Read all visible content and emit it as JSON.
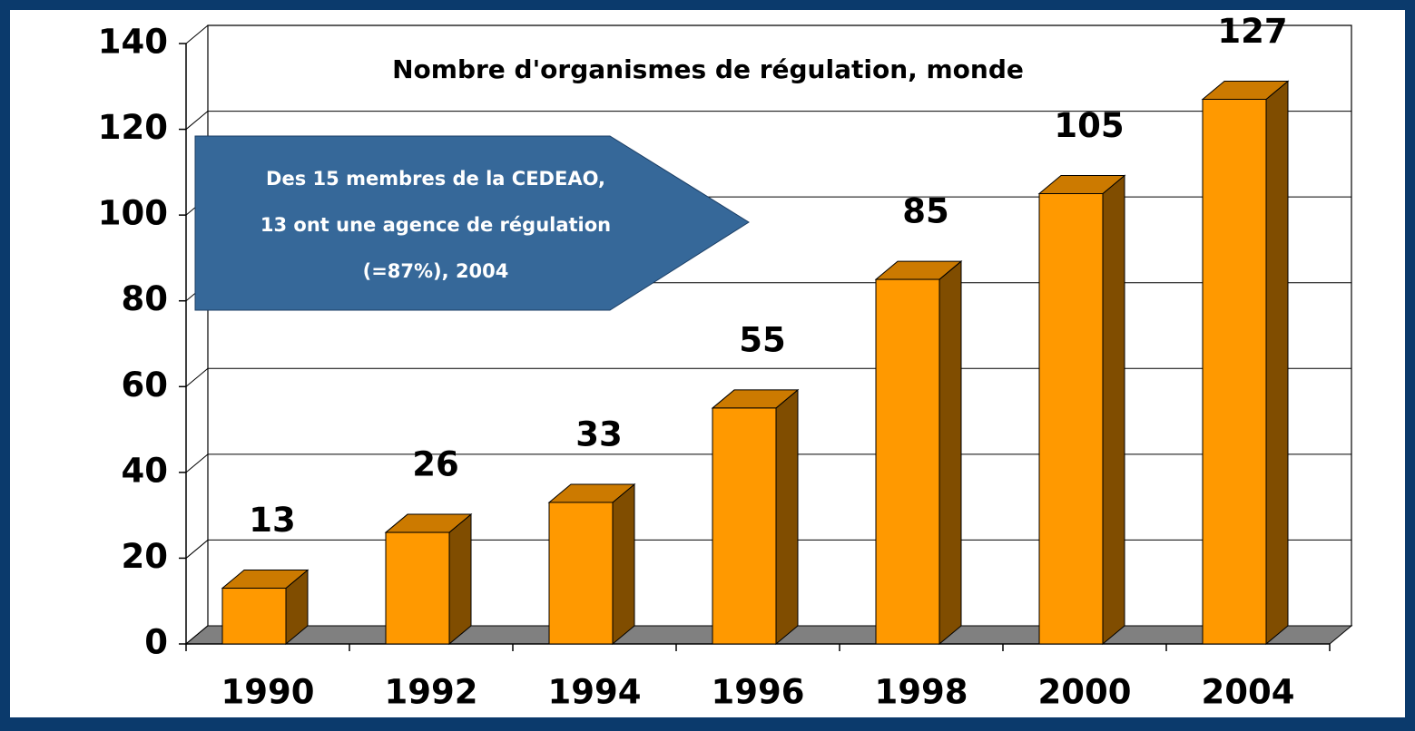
{
  "chart_data": {
    "type": "bar3d",
    "title": "Nombre d'organismes de régulation, monde",
    "annotation": [
      "Des 15 membres de la CEDEAO,",
      "13 ont une agence de régulation",
      "(=87%), 2004"
    ],
    "categories": [
      "1990",
      "1992",
      "1994",
      "1996",
      "1998",
      "2000",
      "2004"
    ],
    "values": [
      13,
      26,
      33,
      55,
      85,
      105,
      127
    ],
    "color": "#ff9900",
    "ylim": [
      0,
      140
    ],
    "yticks": [
      0,
      20,
      40,
      60,
      80,
      100,
      120,
      140
    ],
    "grid": true
  }
}
